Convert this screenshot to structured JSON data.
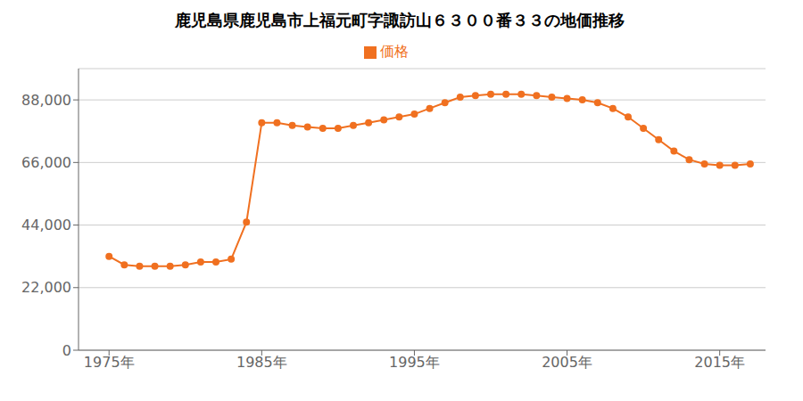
{
  "chart_data": {
    "type": "line",
    "title": "鹿児島県鹿児島市上福元町字諏訪山６３００番３３の地価推移",
    "x": [
      1975,
      1976,
      1977,
      1978,
      1979,
      1980,
      1981,
      1982,
      1983,
      1984,
      1985,
      1986,
      1987,
      1988,
      1989,
      1990,
      1991,
      1992,
      1993,
      1994,
      1995,
      1996,
      1997,
      1998,
      1999,
      2000,
      2001,
      2002,
      2003,
      2004,
      2005,
      2006,
      2007,
      2008,
      2009,
      2010,
      2011,
      2012,
      2013,
      2014,
      2015,
      2016,
      2017
    ],
    "series": [
      {
        "name": "価格",
        "color": "#f07020",
        "marker": "circle",
        "line_style": "solid",
        "values": [
          33000,
          30000,
          29500,
          29500,
          29500,
          30000,
          31000,
          31000,
          32000,
          45000,
          80000,
          80000,
          79000,
          78500,
          78000,
          78000,
          79000,
          80000,
          81000,
          82000,
          83000,
          85000,
          87000,
          89000,
          89500,
          90000,
          90000,
          90000,
          89500,
          89000,
          88500,
          88000,
          87000,
          85000,
          82000,
          78000,
          74000,
          70000,
          67000,
          65500,
          65000,
          65000,
          65500
        ]
      }
    ],
    "xlim": [
      1973,
      2018
    ],
    "xticks": [
      {
        "value": 1975,
        "label": "1975年"
      },
      {
        "value": 1985,
        "label": "1985年"
      },
      {
        "value": 1995,
        "label": "1995年"
      },
      {
        "value": 2005,
        "label": "2005年"
      },
      {
        "value": 2015,
        "label": "2015年"
      }
    ],
    "ylim": [
      0,
      99000
    ],
    "yticks": [
      0,
      {
        "value": 22000,
        "label": "22,000"
      },
      {
        "value": 44000,
        "label": "44,000"
      },
      {
        "value": 66000,
        "label": "66,000"
      },
      {
        "value": 88000,
        "label": "88,000"
      }
    ],
    "grid": true,
    "legend": "top"
  }
}
